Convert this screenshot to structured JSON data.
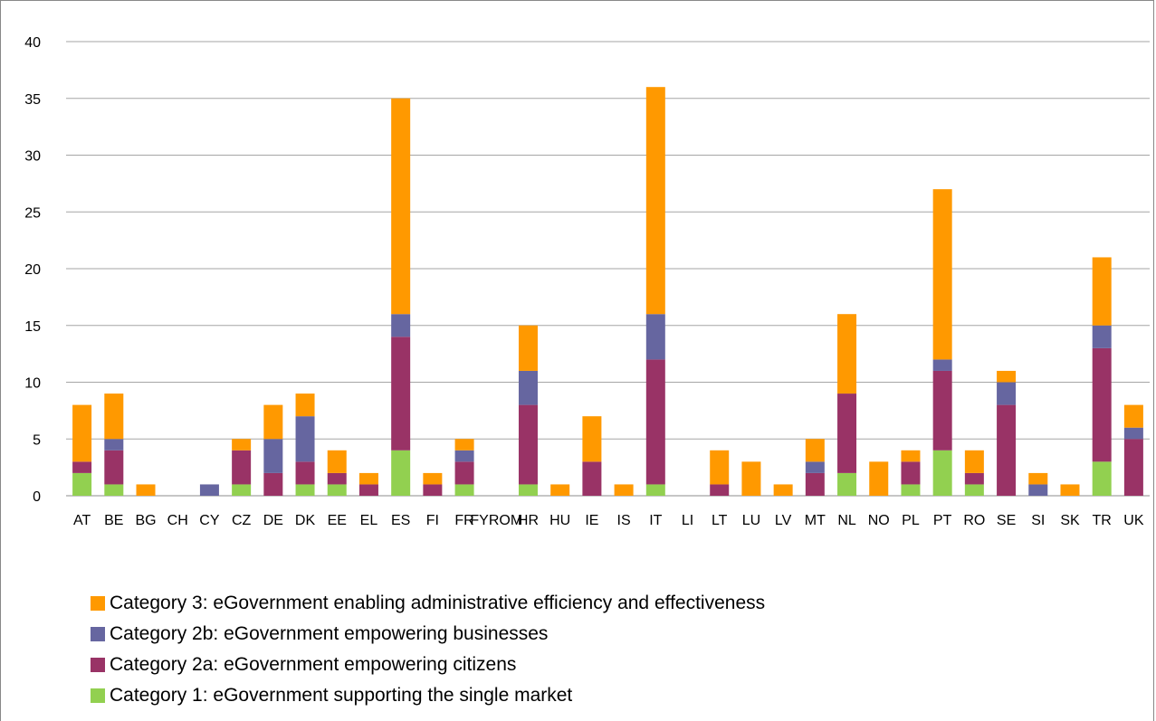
{
  "chart_data": {
    "type": "bar",
    "stacked": true,
    "title": "",
    "xlabel": "",
    "ylabel": "",
    "ylim": [
      0,
      40
    ],
    "yticks": [
      0,
      5,
      10,
      15,
      20,
      25,
      30,
      35,
      40
    ],
    "grid": true,
    "legend_position": "bottom",
    "categories": [
      "AT",
      "BE",
      "BG",
      "CH",
      "CY",
      "CZ",
      "DE",
      "DK",
      "EE",
      "EL",
      "ES",
      "FI",
      "FR",
      "FYROM",
      "HR",
      "HU",
      "IE",
      "IS",
      "IT",
      "LI",
      "LT",
      "LU",
      "LV",
      "MT",
      "NL",
      "NO",
      "PL",
      "PT",
      "RO",
      "SE",
      "SI",
      "SK",
      "TR",
      "UK"
    ],
    "series": [
      {
        "name": "Category 1: eGovernment supporting the single market",
        "color": "#92d050",
        "values": [
          2,
          1,
          0,
          0,
          0,
          1,
          0,
          1,
          1,
          0,
          4,
          0,
          1,
          0,
          1,
          0,
          0,
          0,
          1,
          0,
          0,
          0,
          0,
          0,
          2,
          0,
          1,
          4,
          1,
          0,
          0,
          0,
          3,
          0
        ]
      },
      {
        "name": "Category 2a: eGovernment empowering citizens",
        "color": "#993366",
        "values": [
          1,
          3,
          0,
          0,
          0,
          3,
          2,
          2,
          1,
          1,
          10,
          1,
          2,
          0,
          7,
          0,
          3,
          0,
          11,
          0,
          1,
          0,
          0,
          2,
          7,
          0,
          2,
          7,
          1,
          8,
          0,
          0,
          10,
          5
        ]
      },
      {
        "name": "Category 2b: eGovernment empowering businesses",
        "color": "#6666a0",
        "values": [
          0,
          1,
          0,
          0,
          1,
          0,
          3,
          4,
          0,
          0,
          2,
          0,
          1,
          0,
          3,
          0,
          0,
          0,
          4,
          0,
          0,
          0,
          0,
          1,
          0,
          0,
          0,
          1,
          0,
          2,
          1,
          0,
          2,
          1
        ]
      },
      {
        "name": "Category 3: eGovernment enabling administrative efficiency and effectiveness",
        "color": "#ff9900",
        "values": [
          5,
          4,
          1,
          0,
          0,
          1,
          3,
          2,
          2,
          1,
          19,
          1,
          1,
          0,
          4,
          1,
          4,
          1,
          20,
          0,
          3,
          3,
          1,
          2,
          7,
          3,
          1,
          15,
          2,
          1,
          1,
          1,
          6,
          2
        ]
      }
    ],
    "legend_order": [
      3,
      2,
      1,
      0
    ]
  }
}
